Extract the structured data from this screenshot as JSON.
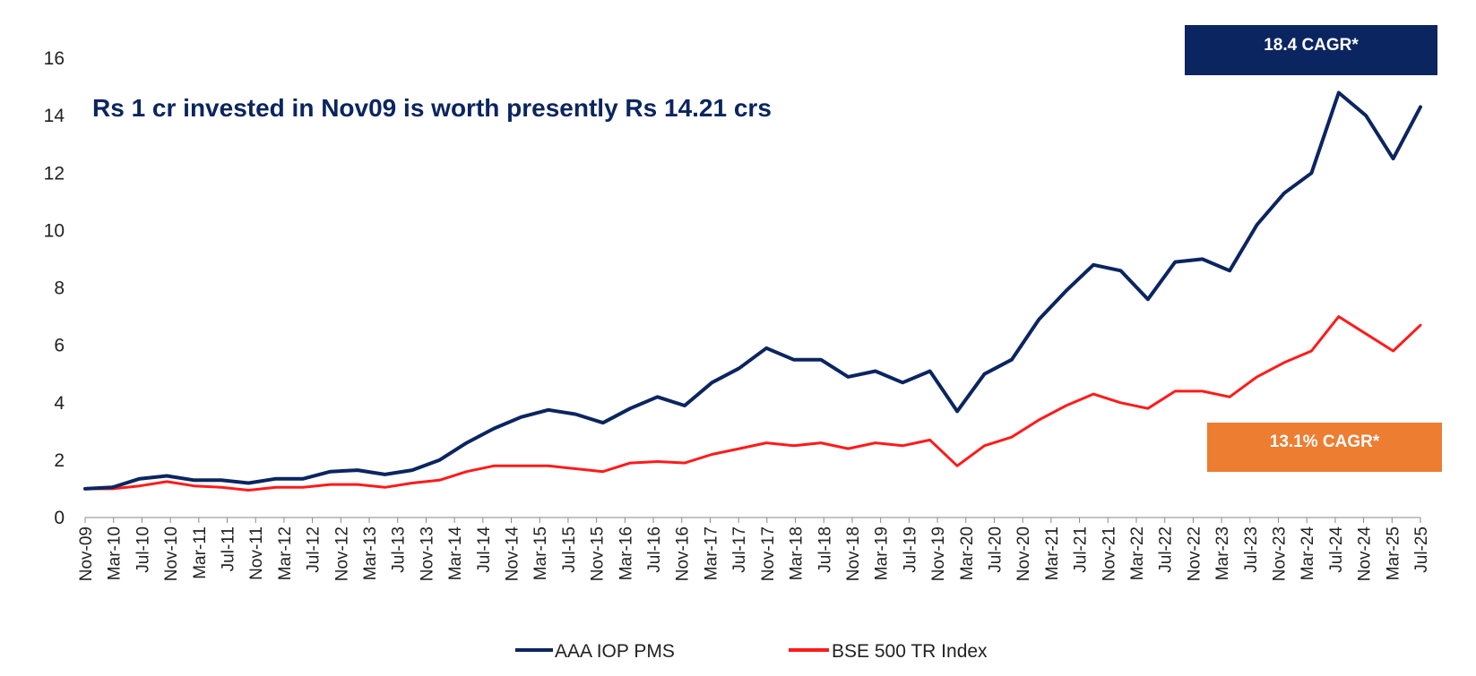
{
  "chart_data": {
    "type": "line",
    "annotation": "Rs 1 cr invested in Nov09 is worth presently Rs 14.21 crs",
    "ylim": [
      0,
      16
    ],
    "yticks": [
      0,
      2,
      4,
      6,
      8,
      10,
      12,
      14,
      16
    ],
    "x_tick_labels": [
      "Nov-09",
      "Mar-10",
      "Jul-10",
      "Nov-10",
      "Mar-11",
      "Jul-11",
      "Nov-11",
      "Mar-12",
      "Jul-12",
      "Nov-12",
      "Mar-13",
      "Jul-13",
      "Nov-13",
      "Mar-14",
      "Jul-14",
      "Nov-14",
      "Mar-15",
      "Jul-15",
      "Nov-15",
      "Mar-16",
      "Jul-16",
      "Nov-16",
      "Mar-17",
      "Jul-17",
      "Nov-17",
      "Mar-18",
      "Jul-18",
      "Nov-18",
      "Mar-19",
      "Jul-19",
      "Nov-19",
      "Mar-20",
      "Jul-20",
      "Nov-20",
      "Mar-21",
      "Jul-21",
      "Nov-21",
      "Mar-22",
      "Jul-22",
      "Nov-22",
      "Mar-23",
      "Jul-23",
      "Nov-23",
      "Mar-24",
      "Jul-24",
      "Nov-24",
      "Mar-25",
      "Jul-25"
    ],
    "grid": false,
    "legend_position": "bottom",
    "series": [
      {
        "name": "AAA IOP PMS",
        "color": "#0b2560",
        "cagr_label": "18.4 CAGR*",
        "cagr_box_color": "#0b2560",
        "values": [
          1.0,
          1.05,
          1.35,
          1.45,
          1.3,
          1.3,
          1.2,
          1.35,
          1.35,
          1.6,
          1.65,
          1.5,
          1.65,
          2.0,
          2.6,
          3.1,
          3.5,
          3.75,
          3.6,
          3.3,
          3.8,
          4.2,
          3.9,
          4.7,
          5.2,
          5.9,
          5.5,
          5.5,
          4.9,
          5.1,
          4.7,
          5.1,
          3.7,
          5.0,
          5.5,
          6.9,
          7.9,
          8.8,
          8.6,
          7.6,
          8.9,
          9.0,
          8.6,
          10.2,
          11.3,
          12.0,
          14.8,
          14.0,
          12.5,
          14.3
        ]
      },
      {
        "name": "BSE 500 TR Index",
        "color": "#ff1a1a",
        "cagr_label": "13.1% CAGR*",
        "cagr_box_color": "#ed7d31",
        "values": [
          1.0,
          1.0,
          1.1,
          1.25,
          1.1,
          1.05,
          0.95,
          1.05,
          1.05,
          1.15,
          1.15,
          1.05,
          1.2,
          1.3,
          1.6,
          1.8,
          1.8,
          1.8,
          1.7,
          1.6,
          1.9,
          1.95,
          1.9,
          2.2,
          2.4,
          2.6,
          2.5,
          2.6,
          2.4,
          2.6,
          2.5,
          2.7,
          1.8,
          2.5,
          2.8,
          3.4,
          3.9,
          4.3,
          4.0,
          3.8,
          4.4,
          4.4,
          4.2,
          4.9,
          5.4,
          5.8,
          7.0,
          6.4,
          5.8,
          6.7
        ]
      }
    ]
  }
}
